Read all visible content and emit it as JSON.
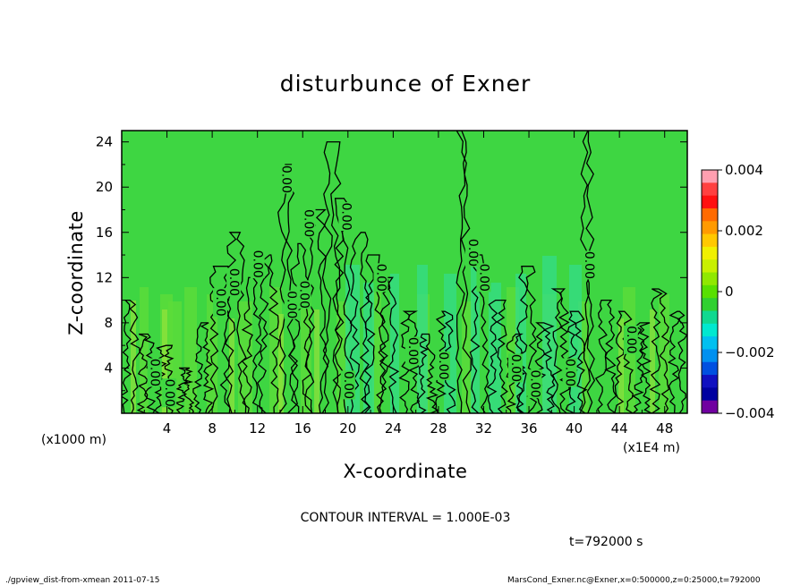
{
  "chart_data": {
    "type": "heatmap",
    "title": "disturbunce of Exner",
    "xlabel": "X-coordinate",
    "ylabel": "Z-coordinate",
    "x_unit_left": "(x1000 m)",
    "x_unit_right": "(x1E4 m)",
    "xlim": [
      0,
      50
    ],
    "ylim": [
      0,
      25
    ],
    "x_ticks": [
      "4",
      "8",
      "12",
      "16",
      "20",
      "24",
      "28",
      "32",
      "36",
      "40",
      "44",
      "48"
    ],
    "y_ticks": [
      "4",
      "8",
      "12",
      "16",
      "20",
      "24"
    ],
    "colorbar": {
      "range": [
        -0.004,
        0.004
      ],
      "labels": [
        "0.004",
        "0.002",
        "0",
        "−0.002",
        "−0.004"
      ],
      "colors": [
        "#ff9fb0",
        "#ff4040",
        "#ff1010",
        "#ff6a00",
        "#ff9a00",
        "#ffc800",
        "#f0f000",
        "#c8f000",
        "#90e800",
        "#58e000",
        "#30d030",
        "#10d890",
        "#00e8d0",
        "#00c0f0",
        "#0090f0",
        "#0050e0",
        "#1010c0",
        "#0000a0",
        "#7000a0"
      ]
    },
    "background_color": "#3ed642",
    "contour_interval": "CONTOUR INTERVAL = 1.000E-03",
    "contour_level_label": "0.00",
    "contour_labels": [
      {
        "x": 2.9,
        "z": 3.6
      },
      {
        "x": 4.2,
        "z": 1.8
      },
      {
        "x": 8.7,
        "z": 9.8
      },
      {
        "x": 9.9,
        "z": 11.6
      },
      {
        "x": 12.0,
        "z": 13.2
      },
      {
        "x": 14.5,
        "z": 20.7
      },
      {
        "x": 15.0,
        "z": 9.6
      },
      {
        "x": 16.1,
        "z": 10.5
      },
      {
        "x": 16.5,
        "z": 16.8
      },
      {
        "x": 19.8,
        "z": 17.4
      },
      {
        "x": 20.0,
        "z": 2.5
      },
      {
        "x": 22.9,
        "z": 12.0
      },
      {
        "x": 25.7,
        "z": 5.5
      },
      {
        "x": 28.4,
        "z": 4.2
      },
      {
        "x": 31.0,
        "z": 14.2
      },
      {
        "x": 32.0,
        "z": 12.0
      },
      {
        "x": 34.8,
        "z": 4.0
      },
      {
        "x": 36.5,
        "z": 2.6
      },
      {
        "x": 39.6,
        "z": 3.6
      },
      {
        "x": 41.3,
        "z": 13.1
      },
      {
        "x": 45.0,
        "z": 6.5
      }
    ]
  },
  "annotations": {
    "time": "t=792000 s",
    "footer_left": "./gpview_dist-from-xmean  2011-07-15",
    "footer_right": "MarsCond_Exner.nc@Exner,x=0:500000,z=0:25000,t=792000"
  },
  "colors": {
    "field_base": "#3ed642",
    "field_light": "#5cdc3a",
    "field_teal": "#33dd8f",
    "field_yellow": "#a9e63a"
  }
}
